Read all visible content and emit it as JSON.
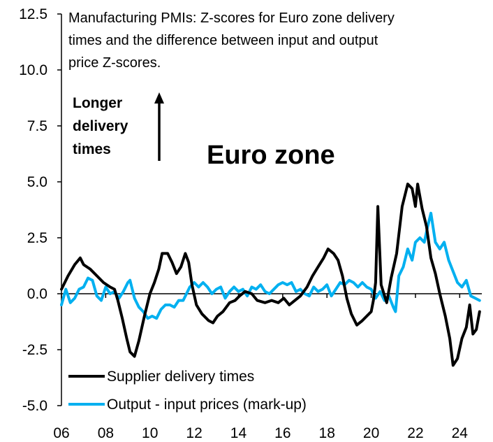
{
  "chart_data": {
    "type": "line",
    "title_lines": [
      "Manufacturing PMIs: Z-scores for Euro zone delivery",
      "times and the difference between input and output",
      "price Z-scores."
    ],
    "panel_label": "Euro zone",
    "annotation_lines": [
      "Longer",
      "delivery",
      "times"
    ],
    "xlabel": "",
    "ylabel": "",
    "ylim": [
      -5.0,
      12.5
    ],
    "yticks": [
      -5.0,
      -2.5,
      0.0,
      2.5,
      5.0,
      7.5,
      10.0,
      12.5
    ],
    "ytick_labels": [
      "-5.0",
      "-2.5",
      "0.0",
      "2.5",
      "5.0",
      "7.5",
      "10.0",
      "12.5"
    ],
    "xlim": [
      2006.0,
      2025.0
    ],
    "xticks": [
      2006,
      2008,
      2010,
      2012,
      2014,
      2016,
      2018,
      2020,
      2022,
      2024
    ],
    "xtick_labels": [
      "06",
      "08",
      "10",
      "12",
      "14",
      "16",
      "18",
      "20",
      "22",
      "24"
    ],
    "legend_position": "bottom-left",
    "series": [
      {
        "name": "Supplier delivery times",
        "color": "#000000",
        "points": [
          [
            2006.0,
            0.2
          ],
          [
            2006.3,
            0.8
          ],
          [
            2006.6,
            1.3
          ],
          [
            2006.85,
            1.6
          ],
          [
            2007.0,
            1.3
          ],
          [
            2007.3,
            1.1
          ],
          [
            2007.6,
            0.8
          ],
          [
            2007.9,
            0.5
          ],
          [
            2008.2,
            0.3
          ],
          [
            2008.4,
            0.2
          ],
          [
            2008.55,
            -0.3
          ],
          [
            2008.75,
            -1.1
          ],
          [
            2008.95,
            -2.0
          ],
          [
            2009.1,
            -2.6
          ],
          [
            2009.3,
            -2.8
          ],
          [
            2009.5,
            -2.1
          ],
          [
            2009.75,
            -1.0
          ],
          [
            2010.0,
            0.0
          ],
          [
            2010.2,
            0.5
          ],
          [
            2010.4,
            1.1
          ],
          [
            2010.55,
            1.8
          ],
          [
            2010.8,
            1.8
          ],
          [
            2011.0,
            1.4
          ],
          [
            2011.2,
            0.9
          ],
          [
            2011.4,
            1.2
          ],
          [
            2011.6,
            1.8
          ],
          [
            2011.75,
            1.4
          ],
          [
            2011.9,
            0.4
          ],
          [
            2012.1,
            -0.5
          ],
          [
            2012.35,
            -0.9
          ],
          [
            2012.65,
            -1.2
          ],
          [
            2012.85,
            -1.3
          ],
          [
            2013.05,
            -1.0
          ],
          [
            2013.3,
            -0.8
          ],
          [
            2013.6,
            -0.4
          ],
          [
            2013.85,
            -0.3
          ],
          [
            2014.05,
            -0.1
          ],
          [
            2014.3,
            0.1
          ],
          [
            2014.6,
            0.0
          ],
          [
            2014.85,
            -0.3
          ],
          [
            2015.2,
            -0.4
          ],
          [
            2015.5,
            -0.3
          ],
          [
            2015.8,
            -0.4
          ],
          [
            2016.05,
            -0.2
          ],
          [
            2016.3,
            -0.5
          ],
          [
            2016.55,
            -0.3
          ],
          [
            2016.8,
            -0.1
          ],
          [
            2017.1,
            0.3
          ],
          [
            2017.35,
            0.8
          ],
          [
            2017.6,
            1.2
          ],
          [
            2017.85,
            1.6
          ],
          [
            2018.05,
            2.0
          ],
          [
            2018.3,
            1.8
          ],
          [
            2018.5,
            1.5
          ],
          [
            2018.7,
            0.8
          ],
          [
            2018.9,
            -0.2
          ],
          [
            2019.1,
            -0.9
          ],
          [
            2019.35,
            -1.4
          ],
          [
            2019.6,
            -1.2
          ],
          [
            2019.8,
            -1.0
          ],
          [
            2020.0,
            -0.8
          ],
          [
            2020.1,
            -0.3
          ],
          [
            2020.2,
            0.5
          ],
          [
            2020.3,
            3.9
          ],
          [
            2020.45,
            0.4
          ],
          [
            2020.7,
            -0.4
          ],
          [
            2020.9,
            0.7
          ],
          [
            2021.15,
            1.8
          ],
          [
            2021.4,
            3.9
          ],
          [
            2021.65,
            4.9
          ],
          [
            2021.85,
            4.7
          ],
          [
            2022.0,
            3.9
          ],
          [
            2022.1,
            4.9
          ],
          [
            2022.3,
            3.8
          ],
          [
            2022.5,
            3.0
          ],
          [
            2022.7,
            1.6
          ],
          [
            2022.9,
            0.9
          ],
          [
            2023.1,
            0.0
          ],
          [
            2023.35,
            -1.0
          ],
          [
            2023.55,
            -2.0
          ],
          [
            2023.7,
            -3.2
          ],
          [
            2023.9,
            -2.9
          ],
          [
            2024.1,
            -2.0
          ],
          [
            2024.3,
            -1.5
          ],
          [
            2024.45,
            -0.5
          ],
          [
            2024.6,
            -1.8
          ],
          [
            2024.75,
            -1.6
          ],
          [
            2024.9,
            -0.8
          ]
        ]
      },
      {
        "name": "Output - input prices (mark-up)",
        "color": "#00B0F0",
        "points": [
          [
            2006.0,
            -0.5
          ],
          [
            2006.2,
            0.2
          ],
          [
            2006.4,
            -0.4
          ],
          [
            2006.6,
            -0.2
          ],
          [
            2006.8,
            0.2
          ],
          [
            2007.0,
            0.3
          ],
          [
            2007.2,
            0.7
          ],
          [
            2007.4,
            0.6
          ],
          [
            2007.6,
            -0.1
          ],
          [
            2007.8,
            -0.3
          ],
          [
            2008.0,
            0.3
          ],
          [
            2008.2,
            0.0
          ],
          [
            2008.4,
            0.1
          ],
          [
            2008.6,
            -0.2
          ],
          [
            2008.8,
            0.1
          ],
          [
            2009.0,
            0.5
          ],
          [
            2009.1,
            0.6
          ],
          [
            2009.3,
            -0.2
          ],
          [
            2009.5,
            -0.6
          ],
          [
            2009.7,
            -0.8
          ],
          [
            2009.9,
            -1.1
          ],
          [
            2010.1,
            -1.0
          ],
          [
            2010.3,
            -1.1
          ],
          [
            2010.5,
            -0.7
          ],
          [
            2010.7,
            -0.5
          ],
          [
            2010.9,
            -0.5
          ],
          [
            2011.1,
            -0.6
          ],
          [
            2011.3,
            -0.3
          ],
          [
            2011.5,
            -0.3
          ],
          [
            2011.8,
            0.3
          ],
          [
            2012.0,
            0.5
          ],
          [
            2012.2,
            0.3
          ],
          [
            2012.4,
            0.5
          ],
          [
            2012.6,
            0.3
          ],
          [
            2012.8,
            0.0
          ],
          [
            2013.0,
            0.2
          ],
          [
            2013.2,
            0.3
          ],
          [
            2013.4,
            -0.2
          ],
          [
            2013.6,
            0.1
          ],
          [
            2013.8,
            0.3
          ],
          [
            2014.0,
            0.1
          ],
          [
            2014.2,
            0.2
          ],
          [
            2014.4,
            -0.1
          ],
          [
            2014.6,
            0.3
          ],
          [
            2014.8,
            0.2
          ],
          [
            2015.0,
            0.4
          ],
          [
            2015.2,
            0.1
          ],
          [
            2015.4,
            0.0
          ],
          [
            2015.6,
            0.2
          ],
          [
            2015.8,
            0.4
          ],
          [
            2016.0,
            0.5
          ],
          [
            2016.2,
            0.4
          ],
          [
            2016.4,
            0.5
          ],
          [
            2016.6,
            0.1
          ],
          [
            2016.8,
            0.2
          ],
          [
            2017.0,
            0.0
          ],
          [
            2017.2,
            -0.1
          ],
          [
            2017.4,
            0.3
          ],
          [
            2017.6,
            0.1
          ],
          [
            2017.8,
            0.2
          ],
          [
            2018.0,
            0.4
          ],
          [
            2018.2,
            -0.1
          ],
          [
            2018.4,
            0.2
          ],
          [
            2018.6,
            0.5
          ],
          [
            2018.8,
            0.4
          ],
          [
            2019.0,
            0.6
          ],
          [
            2019.2,
            0.5
          ],
          [
            2019.4,
            0.3
          ],
          [
            2019.6,
            0.5
          ],
          [
            2019.8,
            0.3
          ],
          [
            2020.0,
            0.2
          ],
          [
            2020.2,
            -0.2
          ],
          [
            2020.4,
            0.1
          ],
          [
            2020.6,
            -0.3
          ],
          [
            2020.8,
            -0.1
          ],
          [
            2021.0,
            -0.6
          ],
          [
            2021.1,
            -0.8
          ],
          [
            2021.25,
            0.8
          ],
          [
            2021.45,
            1.2
          ],
          [
            2021.65,
            2.0
          ],
          [
            2021.85,
            1.5
          ],
          [
            2022.0,
            2.3
          ],
          [
            2022.2,
            2.5
          ],
          [
            2022.4,
            2.3
          ],
          [
            2022.55,
            3.0
          ],
          [
            2022.7,
            3.6
          ],
          [
            2022.9,
            2.3
          ],
          [
            2023.1,
            2.0
          ],
          [
            2023.3,
            2.3
          ],
          [
            2023.5,
            1.5
          ],
          [
            2023.7,
            1.0
          ],
          [
            2023.9,
            0.5
          ],
          [
            2024.1,
            0.3
          ],
          [
            2024.3,
            0.6
          ],
          [
            2024.5,
            -0.1
          ],
          [
            2024.7,
            -0.2
          ],
          [
            2024.9,
            -0.3
          ]
        ]
      }
    ]
  }
}
